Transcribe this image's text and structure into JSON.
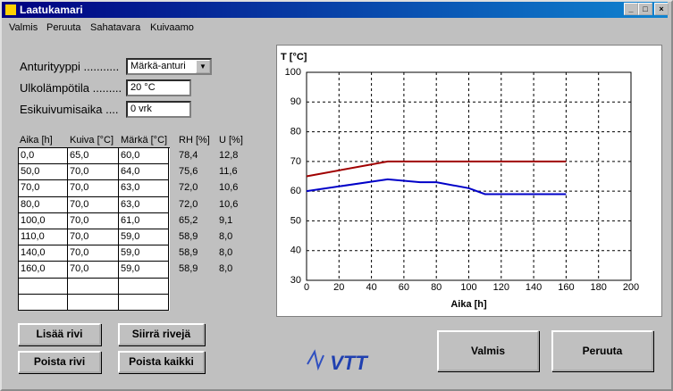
{
  "window": {
    "title": "Laatukamari"
  },
  "menu": [
    "Valmis",
    "Peruuta",
    "Sahatavara",
    "Kuivaamo"
  ],
  "form": {
    "fields": [
      {
        "label": "Anturityyppi ...........",
        "value": "Märkä-anturi"
      },
      {
        "label": "Ulkolämpötila .........",
        "value": "20 °C"
      },
      {
        "label": "Esikuivumisaika ....",
        "value": "0 vrk"
      }
    ]
  },
  "table": {
    "headers": [
      "Aika [h]",
      "Kuiva [°C]",
      "Märkä [°C]",
      "RH [%]",
      "U [%]"
    ],
    "rows": [
      [
        "0,0",
        "65,0",
        "60,0",
        "78,4",
        "12,8"
      ],
      [
        "50,0",
        "70,0",
        "64,0",
        "75,6",
        "11,6"
      ],
      [
        "70,0",
        "70,0",
        "63,0",
        "72,0",
        "10,6"
      ],
      [
        "80,0",
        "70,0",
        "63,0",
        "72,0",
        "10,6"
      ],
      [
        "100,0",
        "70,0",
        "61,0",
        "65,2",
        "9,1"
      ],
      [
        "110,0",
        "70,0",
        "59,0",
        "58,9",
        "8,0"
      ],
      [
        "140,0",
        "70,0",
        "59,0",
        "58,9",
        "8,0"
      ],
      [
        "160,0",
        "70,0",
        "59,0",
        "58,9",
        "8,0"
      ]
    ]
  },
  "row_buttons": [
    "Lisää rivi",
    "Siirrä rivejä",
    "Poista rivi",
    "Poista kaikki"
  ],
  "dialog_buttons": [
    "Valmis",
    "Peruuta"
  ],
  "logo": "VTT",
  "chart_data": {
    "type": "line",
    "ylabel": "T [°C]",
    "xlabel": "Aika [h]",
    "x": [
      0,
      50,
      70,
      80,
      100,
      110,
      140,
      160
    ],
    "series": [
      {
        "color": "#a00000",
        "values": [
          65,
          70,
          70,
          70,
          70,
          70,
          70,
          70
        ]
      },
      {
        "color": "#0000c8",
        "values": [
          60,
          64,
          63,
          63,
          61,
          59,
          59,
          59
        ]
      }
    ],
    "xlim": [
      0,
      200
    ],
    "ylim": [
      30,
      100
    ],
    "xticks": [
      0,
      20,
      40,
      60,
      80,
      100,
      120,
      140,
      160,
      180,
      200
    ],
    "yticks": [
      30,
      40,
      50,
      60,
      70,
      80,
      90,
      100
    ],
    "grid": true
  }
}
